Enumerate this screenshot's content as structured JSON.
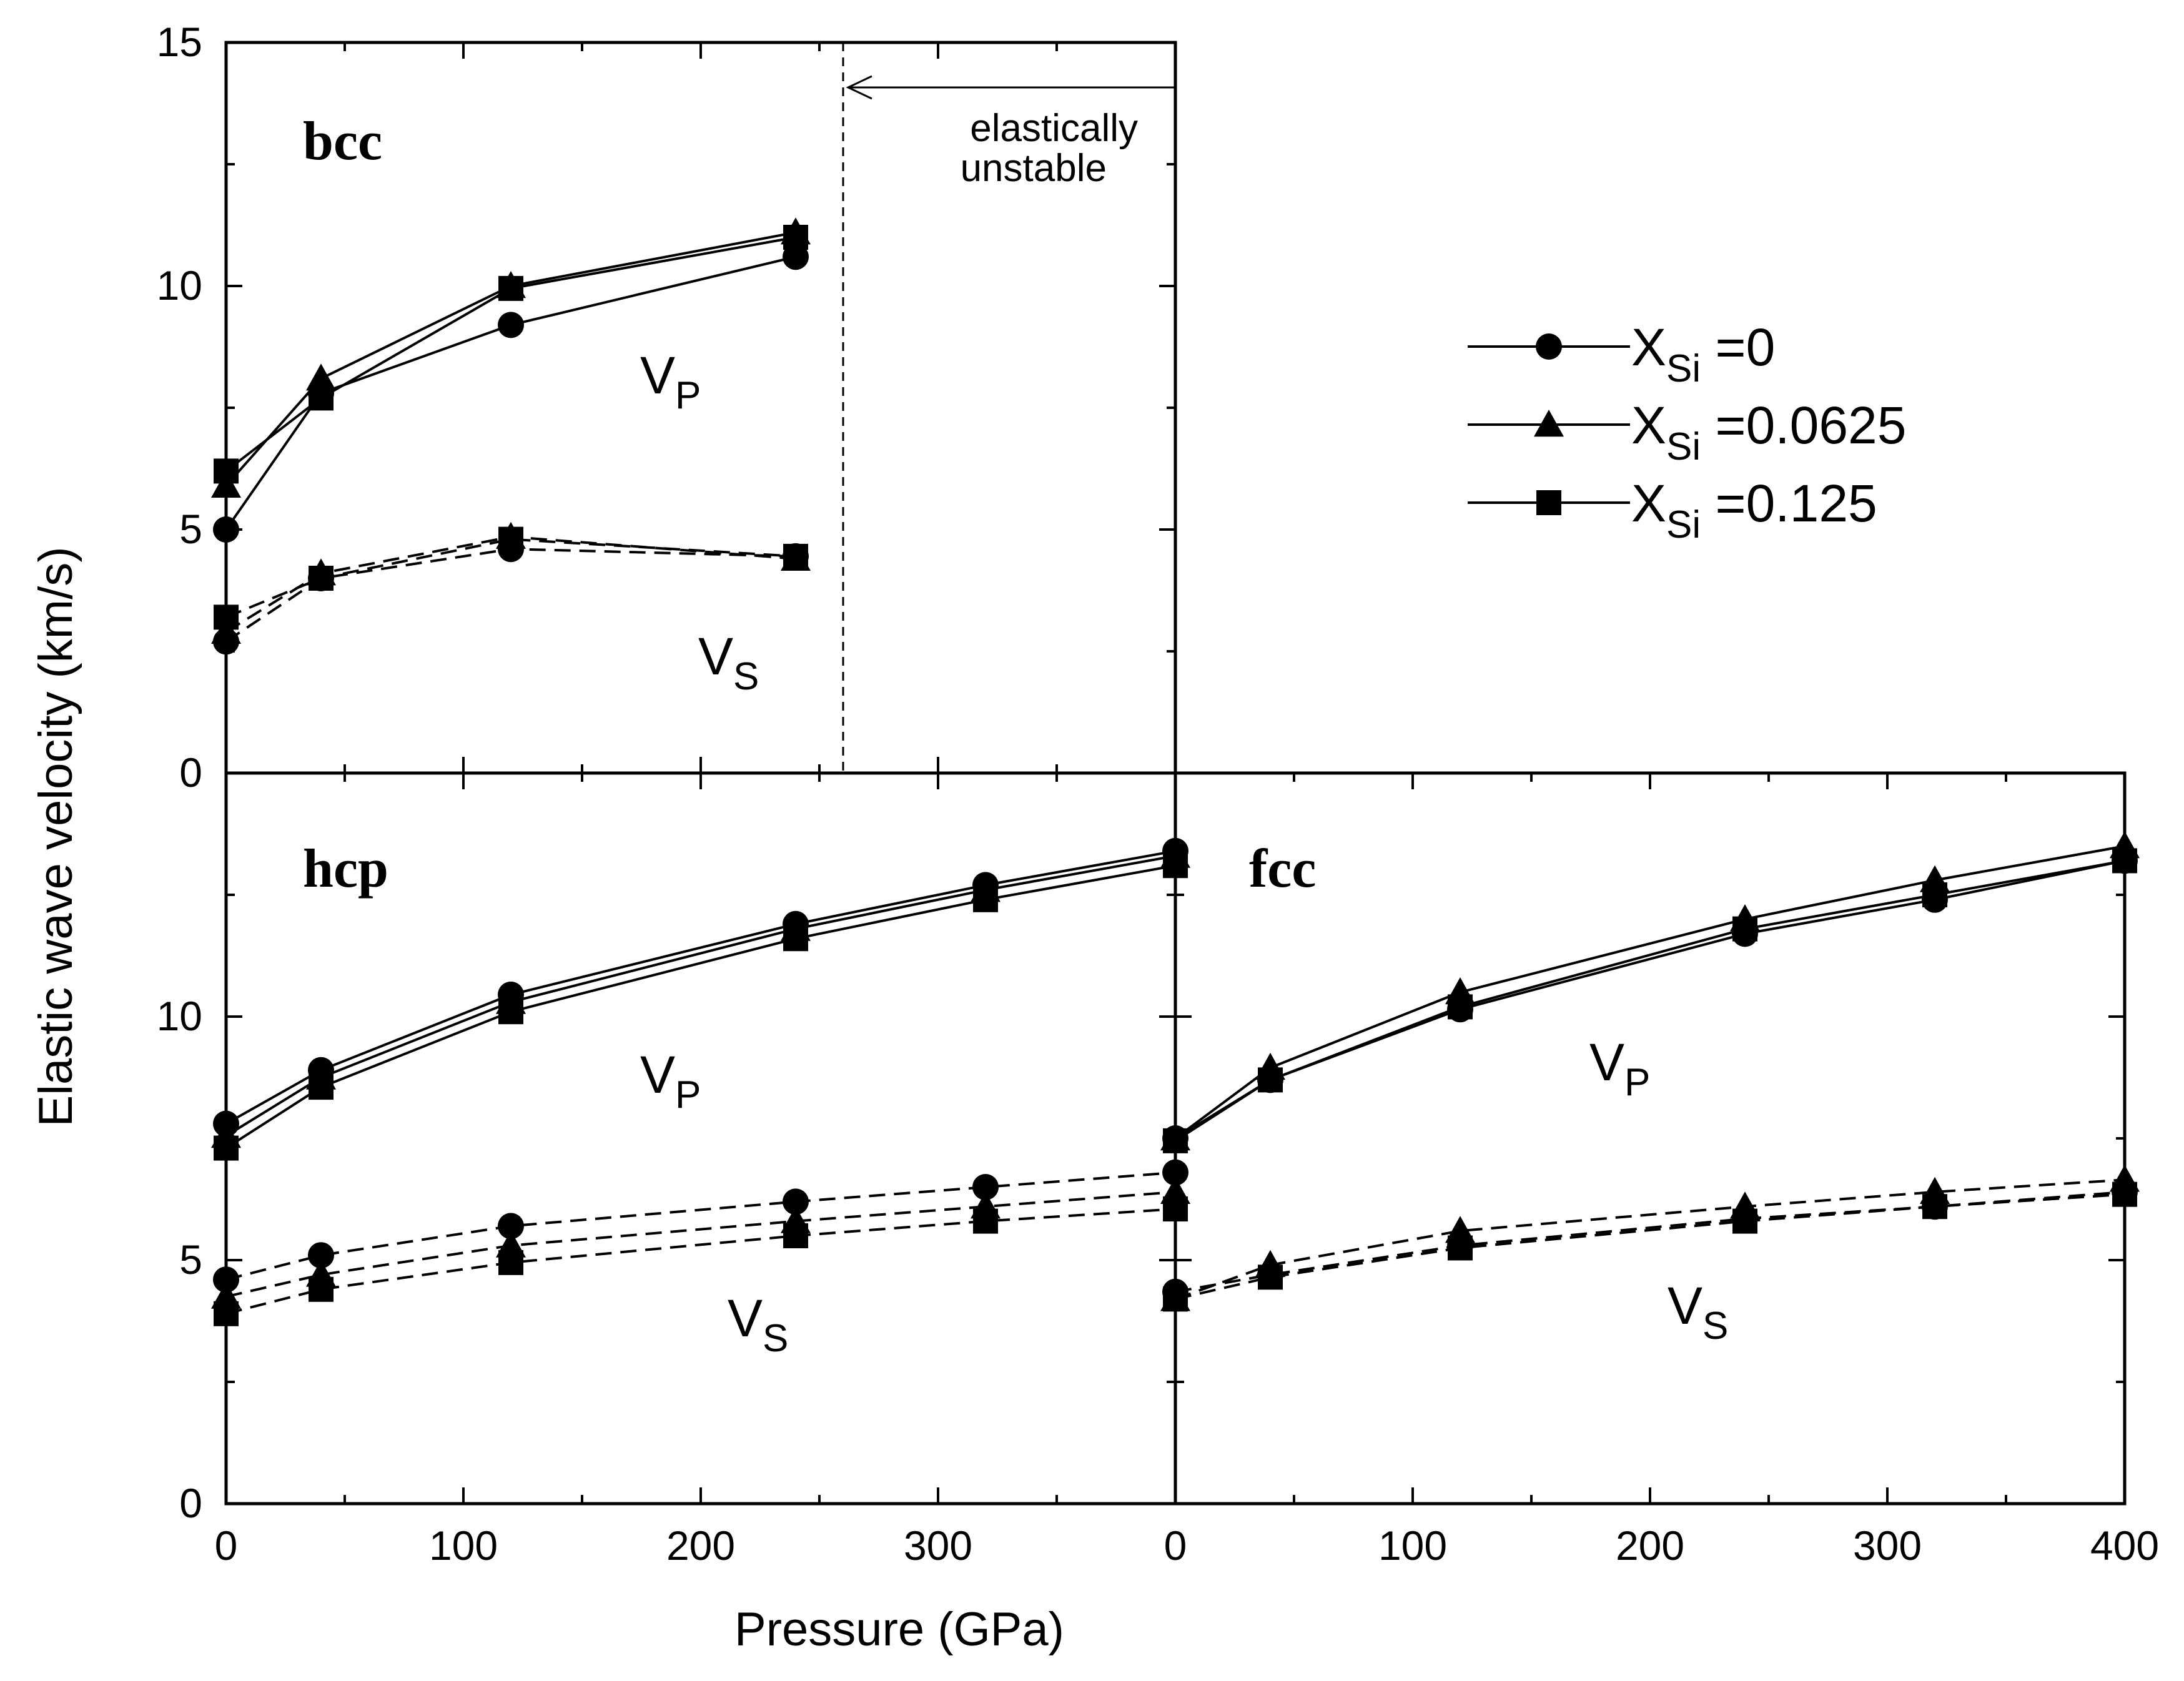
{
  "chart_data": {
    "type": "line",
    "xlabel": "Pressure (GPa)",
    "ylabel": "Elastic wave velocity (km/s)",
    "legend": {
      "placement": "right",
      "entries": [
        {
          "symbol": "circle",
          "prefix": "X",
          "sub": "Si",
          "value": " =0"
        },
        {
          "symbol": "triangle",
          "prefix": "X",
          "sub": "Si",
          "value": " =0.0625"
        },
        {
          "symbol": "square",
          "prefix": "X",
          "sub": "Si",
          "value": " =0.125"
        }
      ]
    },
    "wave_labels": {
      "p_main": "V",
      "p_sub": "P",
      "s_main": "V",
      "s_sub": "S"
    },
    "panels": [
      {
        "name": "bcc",
        "xlim": [
          0,
          400
        ],
        "ylim": [
          0,
          15
        ],
        "yticks": [
          "0",
          "5",
          "10",
          "15"
        ],
        "xticks": [],
        "annotation": {
          "line1": "elastically",
          "line2": "unstable",
          "boundary_x": 260
        },
        "series": [
          {
            "name": "X_Si =0",
            "kind": "Vp",
            "marker": "circle",
            "x": [
              0,
              40,
              120,
              240
            ],
            "y": [
              5.0,
              7.8,
              9.2,
              10.6
            ]
          },
          {
            "name": "X_Si =0.0625",
            "kind": "Vp",
            "marker": "triangle",
            "x": [
              0,
              40,
              120,
              240
            ],
            "y": [
              5.9,
              8.1,
              10.0,
              11.1
            ]
          },
          {
            "name": "X_Si =0.125",
            "kind": "Vp",
            "marker": "square",
            "x": [
              0,
              40,
              120,
              240
            ],
            "y": [
              6.2,
              7.7,
              9.95,
              11.0
            ]
          },
          {
            "name": "X_Si =0",
            "kind": "Vs",
            "marker": "circle",
            "x": [
              0,
              40,
              120,
              240
            ],
            "y": [
              2.7,
              4.0,
              4.6,
              4.45
            ]
          },
          {
            "name": "X_Si =0.0625",
            "kind": "Vs",
            "marker": "triangle",
            "x": [
              0,
              40,
              120,
              240
            ],
            "y": [
              2.9,
              4.1,
              4.85,
              4.4
            ]
          },
          {
            "name": "X_Si =0.125",
            "kind": "Vs",
            "marker": "square",
            "x": [
              0,
              40,
              120,
              240
            ],
            "y": [
              3.2,
              4.0,
              4.8,
              4.45
            ]
          }
        ]
      },
      {
        "name": "hcp",
        "xlim": [
          0,
          400
        ],
        "ylim": [
          0,
          15
        ],
        "yticks": [
          "0",
          "5",
          "10"
        ],
        "xticks": [
          "0",
          "100",
          "200",
          "300"
        ],
        "series": [
          {
            "name": "X_Si =0",
            "kind": "Vp",
            "marker": "circle",
            "x": [
              0,
              40,
              120,
              240,
              320,
              400
            ],
            "y": [
              7.8,
              8.9,
              10.45,
              11.9,
              12.7,
              13.4
            ]
          },
          {
            "name": "X_Si =0.0625",
            "kind": "Vp",
            "marker": "triangle",
            "x": [
              0,
              40,
              120,
              240,
              320,
              400
            ],
            "y": [
              7.55,
              8.75,
              10.3,
              11.8,
              12.6,
              13.3
            ]
          },
          {
            "name": "X_Si =0.125",
            "kind": "Vp",
            "marker": "square",
            "x": [
              0,
              40,
              120,
              240,
              320,
              400
            ],
            "y": [
              7.3,
              8.55,
              10.1,
              11.6,
              12.4,
              13.1
            ]
          },
          {
            "name": "X_Si =0",
            "kind": "Vs",
            "marker": "circle",
            "x": [
              0,
              40,
              120,
              240,
              320,
              400
            ],
            "y": [
              4.6,
              5.1,
              5.7,
              6.2,
              6.5,
              6.8
            ]
          },
          {
            "name": "X_Si =0.0625",
            "kind": "Vs",
            "marker": "triangle",
            "x": [
              0,
              40,
              120,
              240,
              320,
              400
            ],
            "y": [
              4.25,
              4.7,
              5.3,
              5.8,
              6.1,
              6.4
            ]
          },
          {
            "name": "X_Si =0.125",
            "kind": "Vs",
            "marker": "square",
            "x": [
              0,
              40,
              120,
              240,
              320,
              400
            ],
            "y": [
              3.9,
              4.4,
              4.95,
              5.5,
              5.8,
              6.05
            ]
          }
        ]
      },
      {
        "name": "fcc",
        "xlim": [
          0,
          400
        ],
        "ylim": [
          0,
          15
        ],
        "yticks": [],
        "xticks": [
          "0",
          "100",
          "200",
          "300",
          "400"
        ],
        "series": [
          {
            "name": "X_Si =0",
            "kind": "Vp",
            "marker": "circle",
            "x": [
              0,
              40,
              120,
              240,
              320,
              400
            ],
            "y": [
              7.5,
              8.7,
              10.15,
              11.7,
              12.4,
              13.2
            ]
          },
          {
            "name": "X_Si =0.0625",
            "kind": "Vp",
            "marker": "triangle",
            "x": [
              0,
              40,
              120,
              240,
              320,
              400
            ],
            "y": [
              7.5,
              8.95,
              10.5,
              12.0,
              12.8,
              13.5
            ]
          },
          {
            "name": "X_Si =0.125",
            "kind": "Vp",
            "marker": "square",
            "x": [
              0,
              40,
              120,
              240,
              320,
              400
            ],
            "y": [
              7.45,
              8.7,
              10.2,
              11.8,
              12.5,
              13.2
            ]
          },
          {
            "name": "X_Si =0",
            "kind": "Vs",
            "marker": "circle",
            "x": [
              0,
              40,
              120,
              240,
              320,
              400
            ],
            "y": [
              4.35,
              4.7,
              5.3,
              5.85,
              6.1,
              6.4
            ]
          },
          {
            "name": "X_Si =0.0625",
            "kind": "Vs",
            "marker": "triangle",
            "x": [
              0,
              40,
              120,
              240,
              320,
              400
            ],
            "y": [
              4.2,
              4.9,
              5.6,
              6.1,
              6.4,
              6.65
            ]
          },
          {
            "name": "X_Si =0.125",
            "kind": "Vs",
            "marker": "square",
            "x": [
              0,
              40,
              120,
              240,
              320,
              400
            ],
            "y": [
              4.2,
              4.65,
              5.25,
              5.8,
              6.1,
              6.35
            ]
          }
        ]
      }
    ]
  }
}
